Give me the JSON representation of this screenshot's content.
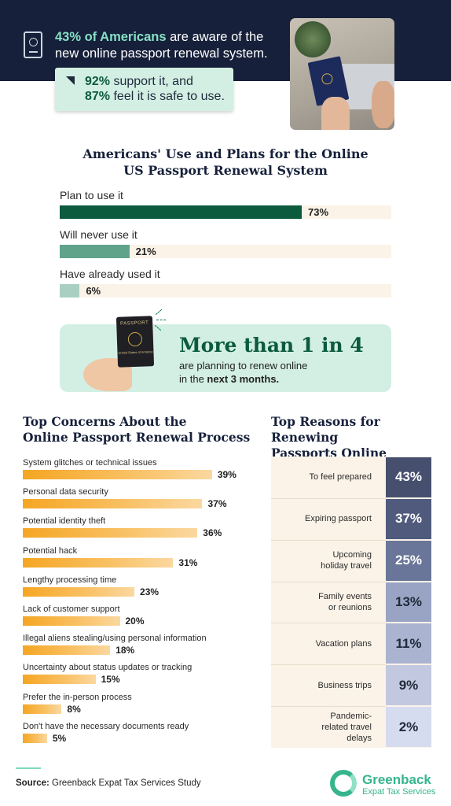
{
  "header": {
    "stat1_bold": "43% of Americans",
    "stat1_rest": " are aware of the new online passport renewal system.",
    "callout_bold1": "92%",
    "callout_text1": " support it, and",
    "callout_bold2": "87%",
    "callout_text2": " feel it is safe to use."
  },
  "banner": {
    "headline": "More than 1 in 4",
    "line1": "are planning to renew online",
    "line2_pre": "in the ",
    "line2_bold": "next 3 months.",
    "passport_word": "PASSPORT",
    "passport_small": "United States of America"
  },
  "colors": {
    "navy": "#16203a",
    "green_dark": "#0c5b3f",
    "green_mid": "#5fa38a",
    "green_light": "#a9cfc2",
    "mint": "#d3efe4",
    "orange": "#f5a623",
    "cream": "#fbf3e8"
  },
  "chart_data": [
    {
      "type": "bar",
      "title": "Americans' Use and Plans for the Online US Passport Renewal System",
      "categories": [
        "Plan to use it",
        "Will never use it",
        "Have already used it"
      ],
      "values": [
        73,
        21,
        6
      ],
      "value_labels": [
        "73%",
        "21%",
        "6%"
      ],
      "colors": [
        "#0c5b3f",
        "#5fa38a",
        "#a9cfc2"
      ],
      "xlim": [
        0,
        100
      ]
    },
    {
      "type": "bar",
      "title": "Top Concerns About the Online Passport Renewal Process",
      "categories": [
        "System glitches or technical issues",
        "Personal data security",
        "Potential identity theft",
        "Potential hack",
        "Lengthy processing time",
        "Lack of customer support",
        "Illegal aliens stealing/using personal information",
        "Uncertainty about status updates or tracking",
        "Prefer the in-person process",
        "Don't have the necessary documents ready"
      ],
      "values": [
        39,
        37,
        36,
        31,
        23,
        20,
        18,
        15,
        8,
        5
      ],
      "value_labels": [
        "39%",
        "37%",
        "36%",
        "31%",
        "23%",
        "20%",
        "18%",
        "15%",
        "8%",
        "5%"
      ],
      "xlim": [
        0,
        40
      ]
    },
    {
      "type": "table",
      "title": "Top Reasons for Renewing Passports Online",
      "categories": [
        "To feel prepared",
        "Expiring passport",
        "Upcoming holiday travel",
        "Family events or reunions",
        "Vacation plans",
        "Business trips",
        "Pandemic-related travel delays"
      ],
      "values": [
        43,
        37,
        25,
        13,
        11,
        9,
        2
      ],
      "value_labels": [
        "43%",
        "37%",
        "25%",
        "13%",
        "11%",
        "9%",
        "2%"
      ],
      "cell_colors": [
        "#46506e",
        "#4f5a7c",
        "#6a7699",
        "#99a3c3",
        "#aab3d0",
        "#c1c8e0",
        "#d6dcef"
      ]
    }
  ],
  "footer": {
    "source_label": "Source:",
    "source_text": " Greenback Expat Tax Services Study",
    "brand_name": "Greenback",
    "brand_sub": "Expat Tax Services"
  }
}
